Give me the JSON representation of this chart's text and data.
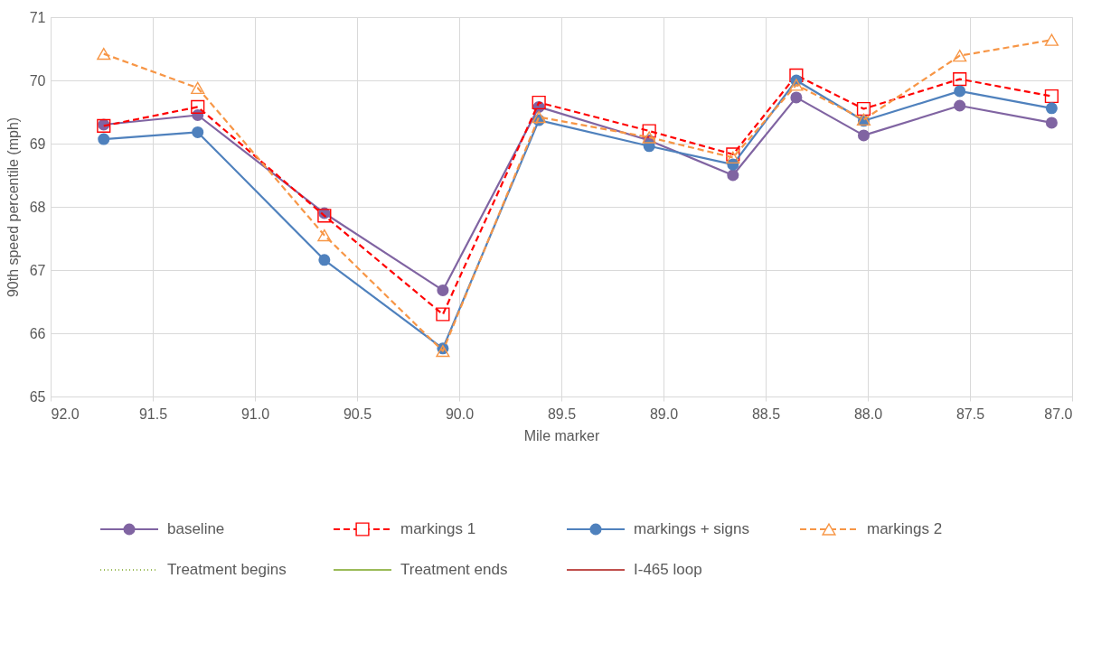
{
  "chart_data": {
    "type": "line",
    "xlabel": "Mile marker",
    "ylabel": "90th speed percentile (mph)",
    "x": [
      91.74,
      91.28,
      90.66,
      90.08,
      89.61,
      89.07,
      88.66,
      88.35,
      88.02,
      87.55,
      87.1
    ],
    "xlim": [
      92,
      87
    ],
    "xticks": [
      {
        "value": 92,
        "label": "92.0"
      },
      {
        "value": 91.5,
        "label": "91.5"
      },
      {
        "value": 91,
        "label": "91.0"
      },
      {
        "value": 90.5,
        "label": "90.5"
      },
      {
        "value": 90,
        "label": "90.0"
      },
      {
        "value": 89.5,
        "label": "89.5"
      },
      {
        "value": 89,
        "label": "89.0"
      },
      {
        "value": 88.5,
        "label": "88.5"
      },
      {
        "value": 88,
        "label": "88.0"
      },
      {
        "value": 87.5,
        "label": "87.5"
      },
      {
        "value": 87,
        "label": "87.0"
      }
    ],
    "ylim": [
      65,
      71
    ],
    "yticks": [
      65,
      66,
      67,
      68,
      69,
      70,
      71
    ],
    "grid": true,
    "legend": "bottom",
    "series": [
      {
        "name": "baseline",
        "color": "#8064a2",
        "marker": "circle",
        "line_style": "solid",
        "values": [
          69.3,
          69.45,
          67.9,
          66.68,
          69.58,
          69.05,
          68.5,
          69.73,
          69.13,
          69.6,
          69.33
        ]
      },
      {
        "name": "markings 1",
        "color": "#ff0000",
        "marker": "square",
        "line_style": "dashed",
        "values": [
          69.28,
          69.58,
          67.86,
          66.3,
          69.65,
          69.2,
          68.83,
          70.08,
          69.55,
          70.02,
          69.75
        ]
      },
      {
        "name": "markings + signs",
        "color": "#4f81bd",
        "marker": "circle",
        "line_style": "solid",
        "values": [
          69.07,
          69.18,
          67.16,
          65.76,
          69.37,
          68.96,
          68.67,
          70.0,
          69.36,
          69.83,
          69.56
        ]
      },
      {
        "name": "markings 2",
        "color": "#f79646",
        "marker": "triangle",
        "line_style": "dashed",
        "values": [
          70.42,
          69.88,
          67.55,
          65.72,
          69.42,
          69.1,
          68.78,
          69.93,
          69.38,
          70.39,
          70.64
        ]
      },
      {
        "name": "Treatment begins",
        "color": "#9bbb59",
        "marker": "none",
        "line_style": "dotted",
        "values": [
          null,
          null,
          null,
          null,
          null,
          null,
          null,
          null,
          null,
          null,
          null
        ]
      },
      {
        "name": "Treatment ends",
        "color": "#9bbb59",
        "marker": "none",
        "line_style": "solid",
        "values": [
          null,
          null,
          null,
          null,
          null,
          null,
          null,
          null,
          null,
          null,
          null
        ]
      },
      {
        "name": "I-465 loop",
        "color": "#c0504d",
        "marker": "none",
        "line_style": "solid",
        "values": [
          null,
          null,
          null,
          null,
          null,
          null,
          null,
          null,
          null,
          null,
          null
        ]
      }
    ]
  }
}
